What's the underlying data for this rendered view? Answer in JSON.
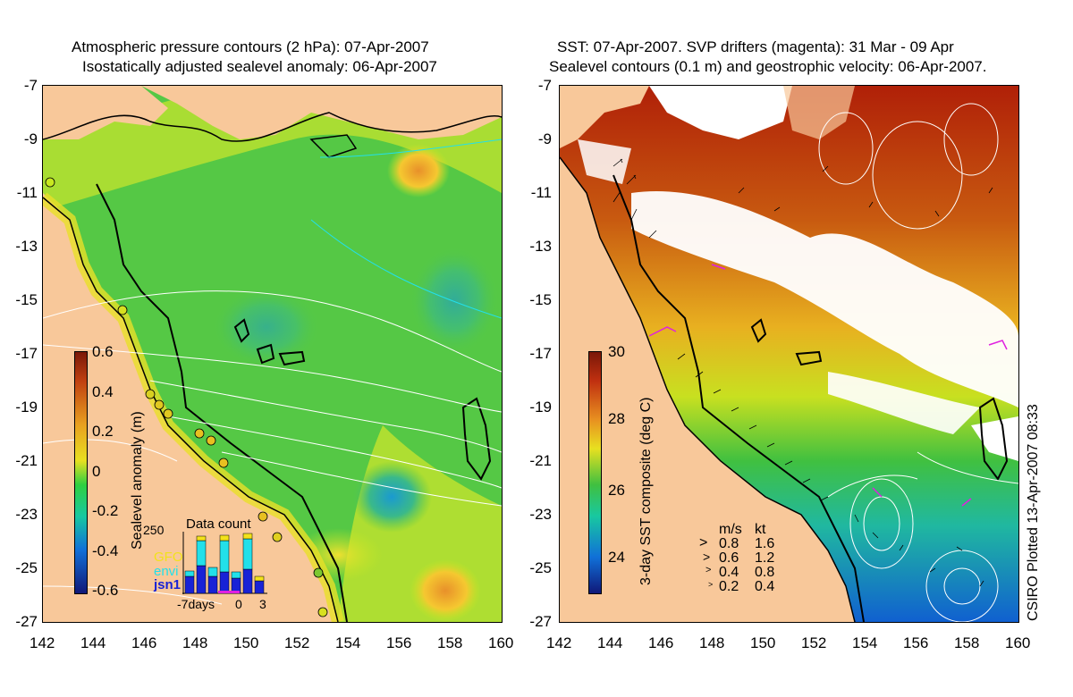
{
  "left_panel": {
    "title_line1": "Atmospheric pressure contours (2 hPa): 07-Apr-2007",
    "title_line2": "Isostatically adjusted sealevel anomaly: 06-Apr-2007",
    "colorbar_label": "Sealevel anomaly (m)",
    "colorbar_ticks": [
      "0.6",
      "0.4",
      "0.2",
      "0",
      "-0.2",
      "-0.4",
      "-0.6"
    ],
    "inset": {
      "title": "Data count",
      "max_label": "250",
      "series": [
        {
          "name": "GFO",
          "color": "#f2e21b"
        },
        {
          "name": "envi",
          "color": "#22e0ea"
        },
        {
          "name": "jsn1",
          "color": "#1822d6"
        }
      ],
      "x_labels": [
        "-7days",
        "0",
        "3"
      ]
    }
  },
  "right_panel": {
    "title_line1": "SST: 07-Apr-2007. SVP drifters (magenta): 31 Mar - 09 Apr",
    "title_line2": "Sealevel contours (0.1 m) and geostrophic velocity: 06-Apr-2007.",
    "colorbar_label": "3-day SST composite (deg C)",
    "colorbar_ticks": [
      "30",
      "28",
      "26",
      "24"
    ],
    "velocity_legend": {
      "header_ms": "m/s",
      "header_kt": "kt",
      "rows": [
        {
          "ms": "0.8",
          "kt": "1.6"
        },
        {
          "ms": "0.6",
          "kt": "1.2"
        },
        {
          "ms": "0.4",
          "kt": "0.8"
        },
        {
          "ms": "0.2",
          "kt": "0.4"
        }
      ]
    }
  },
  "axes": {
    "x_ticks": [
      "142",
      "144",
      "146",
      "148",
      "150",
      "152",
      "154",
      "156",
      "158",
      "160"
    ],
    "y_ticks": [
      "-7",
      "-9",
      "-11",
      "-13",
      "-15",
      "-17",
      "-19",
      "-21",
      "-23",
      "-25",
      "-27"
    ]
  },
  "footer_note": "CSIRO Plotted 13-Apr-2007 08:33",
  "colors": {
    "land": "#f8c89a",
    "sla_green": "#55c845",
    "sla_yellow": "#c8e820",
    "sst_red": "#b02008",
    "cloud_white": "#ffffff"
  }
}
